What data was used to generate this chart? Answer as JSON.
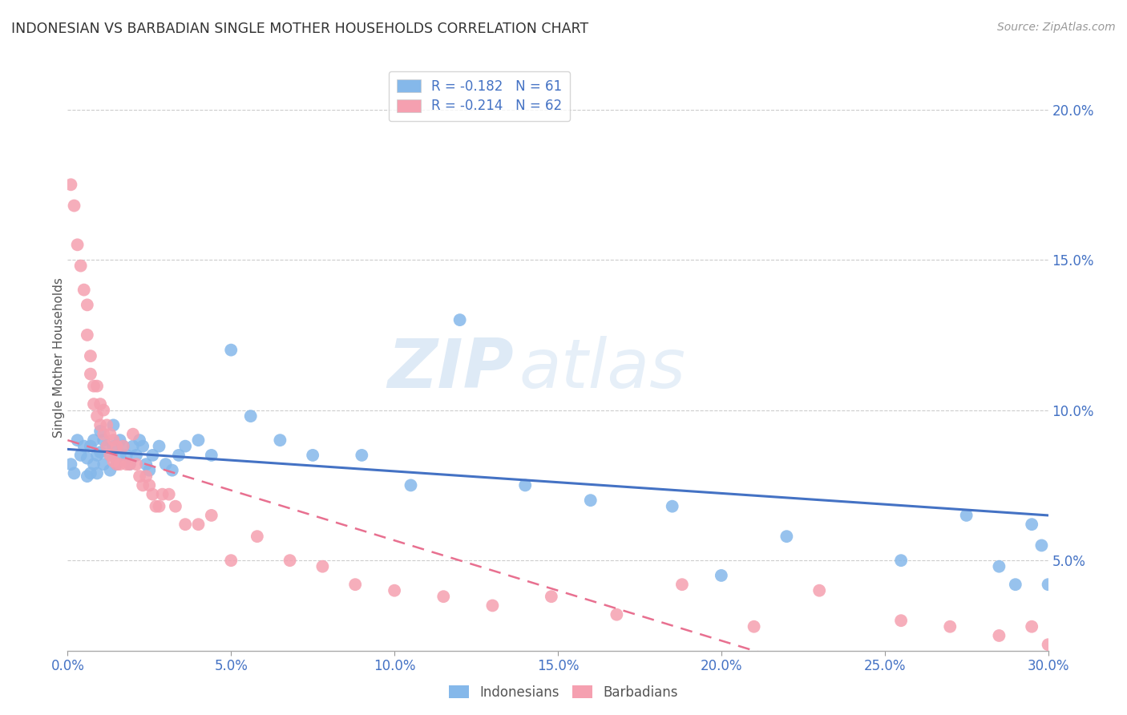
{
  "title": "INDONESIAN VS BARBADIAN SINGLE MOTHER HOUSEHOLDS CORRELATION CHART",
  "source": "Source: ZipAtlas.com",
  "ylabel": "Single Mother Households",
  "xlabel_ticks": [
    "0.0%",
    "5.0%",
    "10.0%",
    "15.0%",
    "20.0%",
    "25.0%",
    "30.0%"
  ],
  "xlabel_vals": [
    0.0,
    0.05,
    0.1,
    0.15,
    0.2,
    0.25,
    0.3
  ],
  "ylabel_ticks": [
    "5.0%",
    "10.0%",
    "15.0%",
    "20.0%"
  ],
  "ylabel_vals": [
    0.05,
    0.1,
    0.15,
    0.2
  ],
  "xlim": [
    0.0,
    0.3
  ],
  "ylim": [
    0.02,
    0.215
  ],
  "indonesian_color": "#85B8EA",
  "barbadian_color": "#F5A0B0",
  "trend_indonesian_color": "#4472C4",
  "trend_barbadian_color": "#E87090",
  "legend_text_color": "#4472C4",
  "watermark_zip": "ZIP",
  "watermark_atlas": "atlas",
  "legend_r_indonesian": "R = -0.182",
  "legend_n_indonesian": "N = 61",
  "legend_r_barbadian": "R = -0.214",
  "legend_n_barbadian": "N = 62",
  "indonesian_x": [
    0.001,
    0.002,
    0.003,
    0.004,
    0.005,
    0.006,
    0.006,
    0.007,
    0.007,
    0.008,
    0.008,
    0.009,
    0.009,
    0.01,
    0.01,
    0.011,
    0.011,
    0.012,
    0.013,
    0.013,
    0.014,
    0.014,
    0.015,
    0.016,
    0.016,
    0.017,
    0.018,
    0.019,
    0.02,
    0.021,
    0.022,
    0.023,
    0.024,
    0.025,
    0.026,
    0.028,
    0.03,
    0.032,
    0.034,
    0.036,
    0.04,
    0.044,
    0.05,
    0.056,
    0.065,
    0.075,
    0.09,
    0.105,
    0.12,
    0.14,
    0.16,
    0.185,
    0.2,
    0.22,
    0.255,
    0.275,
    0.285,
    0.29,
    0.295,
    0.298,
    0.3
  ],
  "indonesian_y": [
    0.082,
    0.079,
    0.09,
    0.085,
    0.088,
    0.078,
    0.084,
    0.088,
    0.079,
    0.09,
    0.082,
    0.085,
    0.079,
    0.093,
    0.086,
    0.082,
    0.09,
    0.088,
    0.085,
    0.08,
    0.095,
    0.088,
    0.082,
    0.09,
    0.085,
    0.088,
    0.085,
    0.082,
    0.088,
    0.085,
    0.09,
    0.088,
    0.082,
    0.08,
    0.085,
    0.088,
    0.082,
    0.08,
    0.085,
    0.088,
    0.09,
    0.085,
    0.12,
    0.098,
    0.09,
    0.085,
    0.085,
    0.075,
    0.13,
    0.075,
    0.07,
    0.068,
    0.045,
    0.058,
    0.05,
    0.065,
    0.048,
    0.042,
    0.062,
    0.055,
    0.042
  ],
  "barbadian_x": [
    0.001,
    0.002,
    0.003,
    0.004,
    0.005,
    0.006,
    0.006,
    0.007,
    0.007,
    0.008,
    0.008,
    0.009,
    0.009,
    0.01,
    0.01,
    0.011,
    0.011,
    0.012,
    0.012,
    0.013,
    0.013,
    0.014,
    0.014,
    0.015,
    0.015,
    0.016,
    0.017,
    0.018,
    0.019,
    0.02,
    0.021,
    0.022,
    0.023,
    0.024,
    0.025,
    0.026,
    0.027,
    0.028,
    0.029,
    0.031,
    0.033,
    0.036,
    0.04,
    0.044,
    0.05,
    0.058,
    0.068,
    0.078,
    0.088,
    0.1,
    0.115,
    0.13,
    0.148,
    0.168,
    0.188,
    0.21,
    0.23,
    0.255,
    0.27,
    0.285,
    0.295,
    0.3
  ],
  "barbadian_y": [
    0.175,
    0.168,
    0.155,
    0.148,
    0.14,
    0.135,
    0.125,
    0.118,
    0.112,
    0.108,
    0.102,
    0.108,
    0.098,
    0.102,
    0.095,
    0.1,
    0.092,
    0.095,
    0.088,
    0.092,
    0.085,
    0.09,
    0.083,
    0.088,
    0.082,
    0.082,
    0.088,
    0.082,
    0.082,
    0.092,
    0.082,
    0.078,
    0.075,
    0.078,
    0.075,
    0.072,
    0.068,
    0.068,
    0.072,
    0.072,
    0.068,
    0.062,
    0.062,
    0.065,
    0.05,
    0.058,
    0.05,
    0.048,
    0.042,
    0.04,
    0.038,
    0.035,
    0.038,
    0.032,
    0.042,
    0.028,
    0.04,
    0.03,
    0.028,
    0.025,
    0.028,
    0.022
  ]
}
